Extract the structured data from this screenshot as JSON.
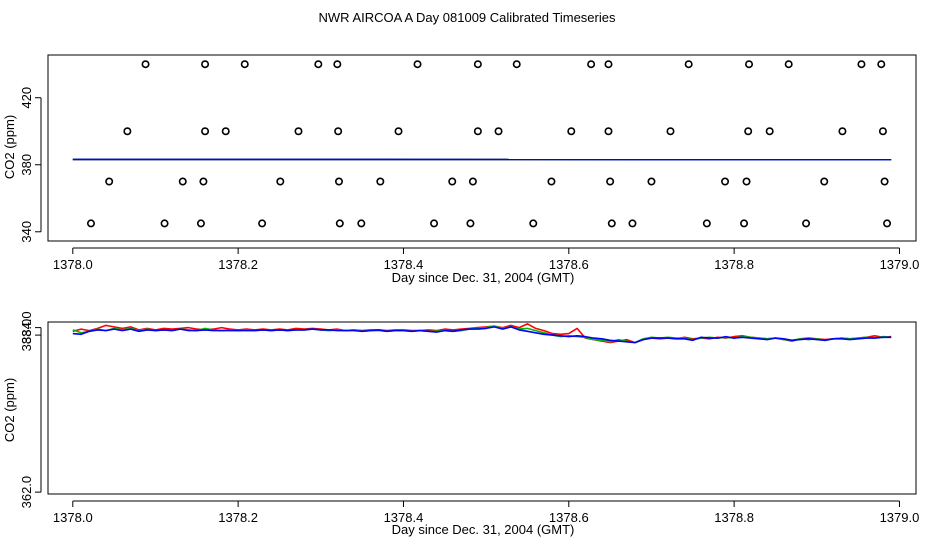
{
  "figure_title": "NWR AIRCOA A  Day 081009  Calibrated Timeseries",
  "colors": {
    "series_1": "#ff0000",
    "series_2": "#00bb00",
    "series_3": "#0000ff",
    "axis": "#000000"
  },
  "chart_data": [
    {
      "type": "scatter",
      "title": "",
      "xlabel": "Day since Dec. 31, 2004 (GMT)",
      "ylabel": "CO2 (ppm)",
      "xlim": [
        1377.97,
        1379.02
      ],
      "ylim": [
        334.5,
        445.5
      ],
      "x_ticks": [
        1378.0,
        1378.2,
        1378.4,
        1378.6,
        1378.8,
        1379.0
      ],
      "x_tick_labels": [
        "1378.0",
        "1378.2",
        "1378.4",
        "1378.6",
        "1378.8",
        "1379.0"
      ],
      "y_ticks": [
        340,
        380,
        420
      ],
      "y_tick_labels": [
        "340",
        "380",
        "420"
      ],
      "line_level": 383.2,
      "point_levels": [
        440,
        400,
        370,
        345
      ],
      "points": [
        {
          "x": 1378.088,
          "y": 440
        },
        {
          "x": 1378.16,
          "y": 440
        },
        {
          "x": 1378.208,
          "y": 440
        },
        {
          "x": 1378.297,
          "y": 440
        },
        {
          "x": 1378.32,
          "y": 440
        },
        {
          "x": 1378.417,
          "y": 440
        },
        {
          "x": 1378.49,
          "y": 440
        },
        {
          "x": 1378.537,
          "y": 440
        },
        {
          "x": 1378.627,
          "y": 440
        },
        {
          "x": 1378.648,
          "y": 440
        },
        {
          "x": 1378.745,
          "y": 440
        },
        {
          "x": 1378.818,
          "y": 440
        },
        {
          "x": 1378.866,
          "y": 440
        },
        {
          "x": 1378.954,
          "y": 440
        },
        {
          "x": 1378.978,
          "y": 440
        },
        {
          "x": 1378.066,
          "y": 400
        },
        {
          "x": 1378.16,
          "y": 400
        },
        {
          "x": 1378.185,
          "y": 400
        },
        {
          "x": 1378.273,
          "y": 400
        },
        {
          "x": 1378.321,
          "y": 400
        },
        {
          "x": 1378.394,
          "y": 400
        },
        {
          "x": 1378.49,
          "y": 400
        },
        {
          "x": 1378.515,
          "y": 400
        },
        {
          "x": 1378.603,
          "y": 400
        },
        {
          "x": 1378.648,
          "y": 400
        },
        {
          "x": 1378.723,
          "y": 400
        },
        {
          "x": 1378.817,
          "y": 400
        },
        {
          "x": 1378.843,
          "y": 400
        },
        {
          "x": 1378.931,
          "y": 400
        },
        {
          "x": 1378.98,
          "y": 400
        },
        {
          "x": 1378.044,
          "y": 370
        },
        {
          "x": 1378.133,
          "y": 370
        },
        {
          "x": 1378.158,
          "y": 370
        },
        {
          "x": 1378.251,
          "y": 370
        },
        {
          "x": 1378.322,
          "y": 370
        },
        {
          "x": 1378.372,
          "y": 370
        },
        {
          "x": 1378.459,
          "y": 370
        },
        {
          "x": 1378.484,
          "y": 370
        },
        {
          "x": 1378.579,
          "y": 370
        },
        {
          "x": 1378.65,
          "y": 370
        },
        {
          "x": 1378.7,
          "y": 370
        },
        {
          "x": 1378.789,
          "y": 370
        },
        {
          "x": 1378.815,
          "y": 370
        },
        {
          "x": 1378.909,
          "y": 370
        },
        {
          "x": 1378.982,
          "y": 370
        },
        {
          "x": 1378.022,
          "y": 345
        },
        {
          "x": 1378.111,
          "y": 345
        },
        {
          "x": 1378.155,
          "y": 345
        },
        {
          "x": 1378.229,
          "y": 345
        },
        {
          "x": 1378.323,
          "y": 345
        },
        {
          "x": 1378.349,
          "y": 345
        },
        {
          "x": 1378.437,
          "y": 345
        },
        {
          "x": 1378.481,
          "y": 345
        },
        {
          "x": 1378.557,
          "y": 345
        },
        {
          "x": 1378.652,
          "y": 345
        },
        {
          "x": 1378.677,
          "y": 345
        },
        {
          "x": 1378.767,
          "y": 345
        },
        {
          "x": 1378.812,
          "y": 345
        },
        {
          "x": 1378.887,
          "y": 345
        },
        {
          "x": 1378.985,
          "y": 345
        }
      ],
      "series": [
        {
          "name": "red",
          "x": [
            1378.0,
            1378.99
          ],
          "values": [
            383.2,
            383.1
          ]
        },
        {
          "name": "green",
          "x": [
            1378.0,
            1378.99
          ],
          "values": [
            383.2,
            383.1
          ]
        },
        {
          "name": "blue",
          "x": [
            1378.0,
            1378.99
          ],
          "values": [
            383.2,
            383.1
          ]
        }
      ]
    },
    {
      "type": "line",
      "title": "",
      "xlabel": "Day since Dec. 31, 2004 (GMT)",
      "ylabel": "CO2 (ppm)",
      "xlim": [
        1377.97,
        1379.02
      ],
      "ylim": [
        361.75,
        384.75
      ],
      "x_ticks": [
        1378.0,
        1378.2,
        1378.4,
        1378.6,
        1378.8,
        1379.0
      ],
      "x_tick_labels": [
        "1378.0",
        "1378.2",
        "1378.4",
        "1378.6",
        "1378.8",
        "1379.0"
      ],
      "y_ticks": [
        362.0,
        383.0,
        384.0
      ],
      "y_tick_labels": [
        "362.0",
        "383.0",
        "384.0"
      ],
      "series": [
        {
          "name": "red",
          "x": [
            1378.0,
            1378.01,
            1378.02,
            1378.03,
            1378.04,
            1378.05,
            1378.06,
            1378.07,
            1378.08,
            1378.09,
            1378.1,
            1378.11,
            1378.12,
            1378.13,
            1378.14,
            1378.15,
            1378.16,
            1378.17,
            1378.18,
            1378.19,
            1378.2,
            1378.21,
            1378.22,
            1378.23,
            1378.24,
            1378.25,
            1378.26,
            1378.27,
            1378.28,
            1378.29,
            1378.3,
            1378.31,
            1378.32,
            1378.33,
            1378.34,
            1378.35,
            1378.36,
            1378.37,
            1378.38,
            1378.39,
            1378.4,
            1378.41,
            1378.42,
            1378.43,
            1378.44,
            1378.45,
            1378.46,
            1378.47,
            1378.48,
            1378.49,
            1378.5,
            1378.51,
            1378.52,
            1378.53,
            1378.54,
            1378.55,
            1378.56,
            1378.57,
            1378.58,
            1378.59,
            1378.6,
            1378.61,
            1378.62,
            1378.63,
            1378.64,
            1378.65,
            1378.66,
            1378.67,
            1378.68,
            1378.69,
            1378.7,
            1378.71,
            1378.72,
            1378.73,
            1378.74,
            1378.75,
            1378.76,
            1378.77,
            1378.78,
            1378.79,
            1378.8,
            1378.81,
            1378.82,
            1378.83,
            1378.84,
            1378.85,
            1378.86,
            1378.87,
            1378.88,
            1378.89,
            1378.9,
            1378.91,
            1378.92,
            1378.93,
            1378.94,
            1378.95,
            1378.96,
            1378.97,
            1378.98,
            1378.99
          ],
          "values": [
            383.5,
            383.8,
            383.6,
            383.9,
            384.3,
            384.1,
            383.9,
            384.1,
            383.7,
            383.9,
            383.7,
            383.9,
            383.8,
            383.9,
            384.0,
            383.8,
            383.7,
            383.8,
            384.0,
            383.8,
            383.7,
            383.8,
            383.7,
            383.8,
            383.7,
            383.8,
            383.7,
            383.9,
            383.8,
            383.9,
            383.8,
            383.7,
            383.8,
            383.6,
            383.7,
            383.6,
            383.7,
            383.7,
            383.6,
            383.7,
            383.7,
            383.6,
            383.6,
            383.7,
            383.6,
            383.8,
            383.7,
            383.8,
            383.9,
            384.0,
            384.1,
            384.2,
            384.0,
            384.3,
            384.0,
            384.5,
            383.9,
            383.6,
            383.2,
            383.1,
            383.2,
            383.9,
            382.6,
            382.4,
            382.2,
            382.0,
            382.2,
            382.4,
            382.0,
            382.4,
            382.6,
            382.5,
            382.6,
            382.5,
            382.7,
            382.5,
            382.6,
            382.5,
            382.7,
            382.6,
            382.8,
            382.9,
            382.7,
            382.6,
            382.5,
            382.6,
            382.4,
            382.2,
            382.5,
            382.6,
            382.5,
            382.4,
            382.5,
            382.6,
            382.5,
            382.6,
            382.7,
            382.9,
            382.7,
            382.8
          ]
        },
        {
          "name": "green",
          "x": [
            1378.0,
            1378.01,
            1378.02,
            1378.03,
            1378.04,
            1378.05,
            1378.06,
            1378.07,
            1378.08,
            1378.09,
            1378.1,
            1378.11,
            1378.12,
            1378.13,
            1378.14,
            1378.15,
            1378.16,
            1378.17,
            1378.18,
            1378.19,
            1378.2,
            1378.21,
            1378.22,
            1378.23,
            1378.24,
            1378.25,
            1378.26,
            1378.27,
            1378.28,
            1378.29,
            1378.3,
            1378.31,
            1378.32,
            1378.33,
            1378.34,
            1378.35,
            1378.36,
            1378.37,
            1378.38,
            1378.39,
            1378.4,
            1378.41,
            1378.42,
            1378.43,
            1378.44,
            1378.45,
            1378.46,
            1378.47,
            1378.48,
            1378.49,
            1378.5,
            1378.51,
            1378.52,
            1378.53,
            1378.54,
            1378.55,
            1378.56,
            1378.57,
            1378.58,
            1378.59,
            1378.6,
            1378.61,
            1378.62,
            1378.63,
            1378.64,
            1378.65,
            1378.66,
            1378.67,
            1378.68,
            1378.69,
            1378.7,
            1378.71,
            1378.72,
            1378.73,
            1378.74,
            1378.75,
            1378.76,
            1378.77,
            1378.78,
            1378.79,
            1378.8,
            1378.81,
            1378.82,
            1378.83,
            1378.84,
            1378.85,
            1378.86,
            1378.87,
            1378.88,
            1378.89,
            1378.9,
            1378.91,
            1378.92,
            1378.93,
            1378.94,
            1378.95,
            1378.96,
            1378.97,
            1378.98,
            1378.99
          ],
          "values": [
            383.7,
            383.3,
            383.5,
            383.8,
            383.6,
            383.9,
            383.7,
            383.9,
            383.6,
            383.8,
            383.6,
            383.7,
            383.6,
            383.8,
            383.7,
            383.6,
            383.9,
            383.7,
            383.6,
            383.7,
            383.6,
            383.7,
            383.6,
            383.7,
            383.6,
            383.7,
            383.6,
            383.7,
            383.7,
            383.8,
            383.7,
            383.6,
            383.7,
            383.6,
            383.7,
            383.5,
            383.6,
            383.6,
            383.5,
            383.6,
            383.6,
            383.5,
            383.6,
            383.5,
            383.5,
            383.6,
            383.5,
            383.6,
            383.8,
            383.9,
            384.0,
            384.2,
            383.9,
            384.1,
            383.8,
            383.9,
            383.6,
            383.3,
            383.0,
            382.8,
            382.9,
            382.8,
            382.7,
            382.4,
            382.3,
            382.1,
            382.4,
            382.2,
            382.0,
            382.5,
            382.7,
            382.6,
            382.7,
            382.6,
            382.6,
            382.4,
            382.6,
            382.7,
            382.6,
            382.7,
            382.6,
            382.8,
            382.7,
            382.6,
            382.5,
            382.6,
            382.4,
            382.3,
            382.5,
            382.4,
            382.5,
            382.3,
            382.5,
            382.6,
            382.5,
            382.6,
            382.7,
            382.6,
            382.8,
            382.7
          ]
        },
        {
          "name": "blue",
          "x": [
            1378.0,
            1378.01,
            1378.02,
            1378.03,
            1378.04,
            1378.05,
            1378.06,
            1378.07,
            1378.08,
            1378.09,
            1378.1,
            1378.11,
            1378.12,
            1378.13,
            1378.14,
            1378.15,
            1378.16,
            1378.17,
            1378.18,
            1378.19,
            1378.2,
            1378.21,
            1378.22,
            1378.23,
            1378.24,
            1378.25,
            1378.26,
            1378.27,
            1378.28,
            1378.29,
            1378.3,
            1378.31,
            1378.32,
            1378.33,
            1378.34,
            1378.35,
            1378.36,
            1378.37,
            1378.38,
            1378.39,
            1378.4,
            1378.41,
            1378.42,
            1378.43,
            1378.44,
            1378.45,
            1378.46,
            1378.47,
            1378.48,
            1378.49,
            1378.5,
            1378.51,
            1378.52,
            1378.53,
            1378.54,
            1378.55,
            1378.56,
            1378.57,
            1378.58,
            1378.59,
            1378.6,
            1378.61,
            1378.62,
            1378.63,
            1378.64,
            1378.65,
            1378.66,
            1378.67,
            1378.68,
            1378.69,
            1378.7,
            1378.71,
            1378.72,
            1378.73,
            1378.74,
            1378.75,
            1378.76,
            1378.77,
            1378.78,
            1378.79,
            1378.8,
            1378.81,
            1378.82,
            1378.83,
            1378.84,
            1378.85,
            1378.86,
            1378.87,
            1378.88,
            1378.89,
            1378.9,
            1378.91,
            1378.92,
            1378.93,
            1378.94,
            1378.95,
            1378.96,
            1378.97,
            1378.98,
            1378.99
          ],
          "values": [
            383.2,
            383.1,
            383.5,
            383.7,
            383.6,
            383.8,
            383.6,
            383.8,
            383.5,
            383.7,
            383.6,
            383.7,
            383.6,
            383.8,
            383.6,
            383.6,
            383.7,
            383.6,
            383.6,
            383.6,
            383.6,
            383.6,
            383.6,
            383.7,
            383.6,
            383.7,
            383.6,
            383.7,
            383.7,
            383.8,
            383.7,
            383.7,
            383.6,
            383.6,
            383.6,
            383.5,
            383.6,
            383.7,
            383.5,
            383.6,
            383.6,
            383.5,
            383.6,
            383.5,
            383.4,
            383.6,
            383.5,
            383.7,
            383.8,
            383.8,
            383.9,
            384.1,
            383.8,
            384.1,
            383.7,
            383.5,
            383.3,
            383.1,
            383.0,
            382.9,
            382.8,
            382.9,
            382.8,
            382.6,
            382.5,
            382.3,
            382.2,
            382.1,
            382.0,
            382.4,
            382.6,
            382.6,
            382.6,
            382.5,
            382.5,
            382.3,
            382.7,
            382.6,
            382.6,
            382.8,
            382.6,
            382.7,
            382.6,
            382.5,
            382.4,
            382.6,
            382.5,
            382.3,
            382.4,
            382.5,
            382.4,
            382.3,
            382.5,
            382.5,
            382.4,
            382.5,
            382.6,
            382.6,
            382.7,
            382.7
          ]
        }
      ]
    }
  ]
}
